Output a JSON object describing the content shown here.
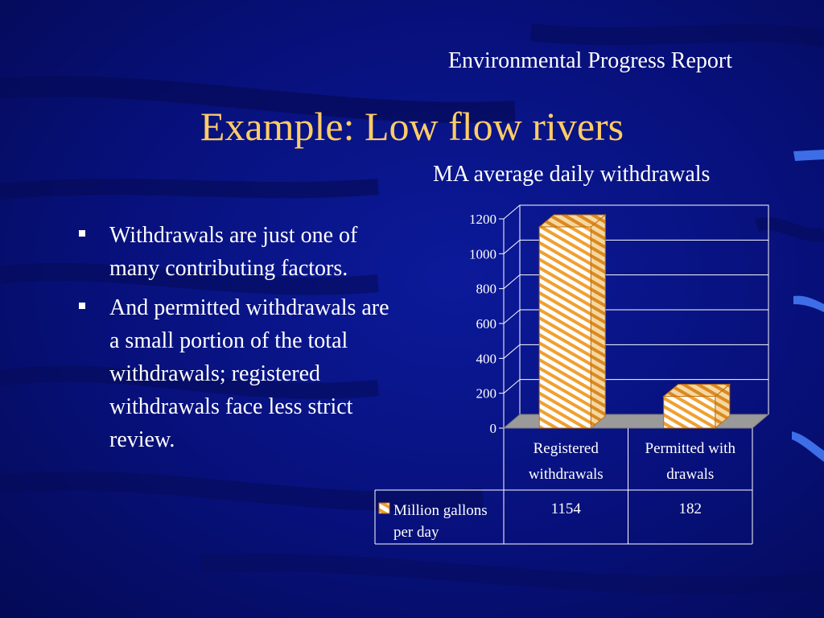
{
  "slide": {
    "header": "Environmental Progress Report",
    "title": "Example: Low flow rivers",
    "bullets": [
      "Withdrawals are just one of many contributing factors.",
      "And permitted withdrawals are a small portion of the total withdrawals; registered withdrawals face less strict review."
    ]
  },
  "colors": {
    "background": "#07107a",
    "title": "#ffcc66",
    "text": "#ffffff",
    "bar_fill": "#ffffff",
    "bar_stripe": "#f0a030",
    "floor": "#9a9a9a"
  },
  "chart_data": {
    "type": "bar",
    "title": "MA average daily withdrawals",
    "categories": [
      [
        "Registered",
        "withdrawals"
      ],
      [
        "Permitted with",
        "drawals"
      ]
    ],
    "series": [
      {
        "name": "Million gallons per day",
        "name_lines": [
          "Million gallons",
          "per day"
        ],
        "values": [
          1154,
          182
        ]
      }
    ],
    "value_labels": [
      "1154",
      "182"
    ],
    "ylim": [
      0,
      1200
    ],
    "yticks": [
      0,
      200,
      400,
      600,
      800,
      1000,
      1200
    ],
    "grid": true,
    "legend": "data-table",
    "xlabel": "",
    "ylabel": ""
  }
}
